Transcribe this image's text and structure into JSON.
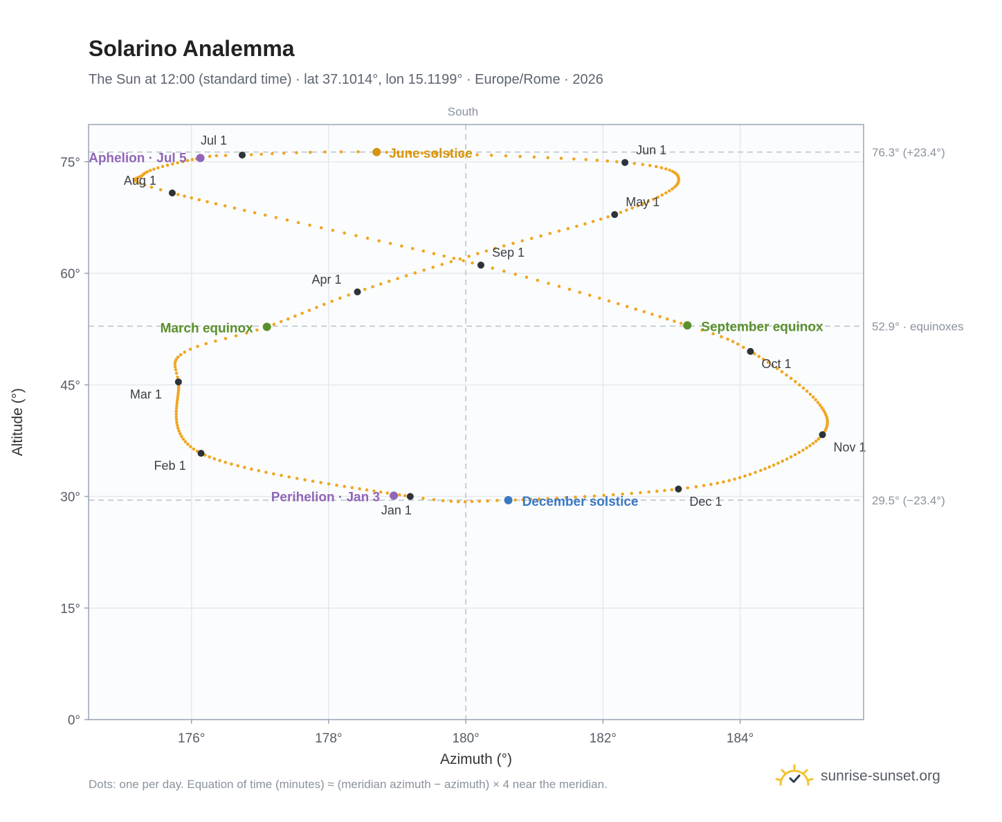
{
  "title": "Solarino Analemma",
  "subtitle": "The Sun at 12:00 (standard time) · lat 37.1014°, lon 15.1199° · Europe/Rome · 2026",
  "footnote": "Dots: one per day. Equation of time (minutes) ≈ (meridian azimuth − azimuth) × 4 near the meridian.",
  "brand": {
    "text": "sunrise-sunset.org",
    "logo_icon": "sun-check-icon"
  },
  "colors": {
    "path": "#f0a623",
    "month_dot": "#2e333a",
    "solstice_june": "#d4960f",
    "solstice_december": "#3a78c2",
    "equinox": "#5a8f2c",
    "apsis": "#9066b8",
    "grid": "#e4e9ef",
    "reference": "#b8c2cc",
    "frame": "#98a4b3",
    "plot_bg": "#fbfcfd"
  },
  "chart_data": {
    "type": "scatter",
    "xlabel": "Azimuth (°)",
    "ylabel": "Altitude (°)",
    "xlim": [
      174.5,
      185.8
    ],
    "ylim": [
      0,
      80
    ],
    "xticks": [
      176,
      178,
      180,
      182,
      184
    ],
    "yticks": [
      0,
      15,
      30,
      45,
      60,
      75
    ],
    "tick_suffix": "°",
    "grid": true,
    "meridian": {
      "azimuth": 180,
      "label": "South"
    },
    "reference_lines": [
      {
        "altitude": 76.3,
        "label": "76.3° (+23.4°)"
      },
      {
        "altitude": 52.9,
        "label": "52.9° · equinoxes"
      },
      {
        "altitude": 29.5,
        "label": "29.5° (−23.4°)"
      }
    ],
    "path_anchors": [
      {
        "doy": 1,
        "az": 179.19,
        "alt": 30.0
      },
      {
        "doy": 32,
        "az": 176.14,
        "alt": 35.8
      },
      {
        "doy": 60,
        "az": 175.81,
        "alt": 45.4
      },
      {
        "doy": 70,
        "az": 175.9,
        "alt": 49.4
      },
      {
        "doy": 79,
        "az": 177.1,
        "alt": 52.8
      },
      {
        "doy": 91,
        "az": 178.42,
        "alt": 57.5
      },
      {
        "doy": 106,
        "az": 180.3,
        "alt": 63.0
      },
      {
        "doy": 121,
        "az": 182.17,
        "alt": 67.9
      },
      {
        "doy": 137,
        "az": 183.1,
        "alt": 72.3
      },
      {
        "doy": 152,
        "az": 182.32,
        "alt": 74.9
      },
      {
        "doy": 172,
        "az": 178.7,
        "alt": 76.3
      },
      {
        "doy": 182,
        "az": 176.74,
        "alt": 75.9
      },
      {
        "doy": 186,
        "az": 176.13,
        "alt": 75.5
      },
      {
        "doy": 200,
        "az": 175.3,
        "alt": 73.3
      },
      {
        "doy": 213,
        "az": 175.72,
        "alt": 70.8
      },
      {
        "doy": 244,
        "az": 180.22,
        "alt": 61.1
      },
      {
        "doy": 266,
        "az": 183.23,
        "alt": 53.0
      },
      {
        "doy": 274,
        "az": 184.15,
        "alt": 49.5
      },
      {
        "doy": 290,
        "az": 185.1,
        "alt": 43.0
      },
      {
        "doy": 305,
        "az": 185.2,
        "alt": 38.3
      },
      {
        "doy": 322,
        "az": 184.3,
        "alt": 33.5
      },
      {
        "doy": 335,
        "az": 183.1,
        "alt": 31.0
      },
      {
        "doy": 355,
        "az": 180.62,
        "alt": 29.5
      },
      {
        "doy": 366,
        "az": 179.19,
        "alt": 30.0
      }
    ],
    "month_markers": [
      {
        "label": "Jan 1",
        "az": 179.19,
        "alt": 30.0
      },
      {
        "label": "Feb 1",
        "az": 176.14,
        "alt": 35.8
      },
      {
        "label": "Mar 1",
        "az": 175.81,
        "alt": 45.4
      },
      {
        "label": "Apr 1",
        "az": 178.42,
        "alt": 57.5
      },
      {
        "label": "May 1",
        "az": 182.17,
        "alt": 67.9
      },
      {
        "label": "Jun 1",
        "az": 182.32,
        "alt": 74.9
      },
      {
        "label": "Jul 1",
        "az": 176.74,
        "alt": 75.9
      },
      {
        "label": "Aug 1",
        "az": 175.72,
        "alt": 70.8
      },
      {
        "label": "Sep 1",
        "az": 180.22,
        "alt": 61.1
      },
      {
        "label": "Oct 1",
        "az": 184.15,
        "alt": 49.5
      },
      {
        "label": "Nov 1",
        "az": 185.2,
        "alt": 38.3
      },
      {
        "label": "Dec 1",
        "az": 183.1,
        "alt": 31.0
      }
    ],
    "events": [
      {
        "label": "June solstice",
        "az": 178.7,
        "alt": 76.3,
        "kind": "solstice_june"
      },
      {
        "label": "December solstice",
        "az": 180.62,
        "alt": 29.5,
        "kind": "solstice_december"
      },
      {
        "label": "March equinox",
        "az": 177.1,
        "alt": 52.8,
        "kind": "equinox"
      },
      {
        "label": "September equinox",
        "az": 183.23,
        "alt": 53.0,
        "kind": "equinox"
      },
      {
        "label": "Aphelion · Jul 5",
        "az": 176.13,
        "alt": 75.5,
        "kind": "apsis"
      },
      {
        "label": "Perihelion · Jan 3",
        "az": 178.95,
        "alt": 30.1,
        "kind": "apsis"
      }
    ]
  }
}
